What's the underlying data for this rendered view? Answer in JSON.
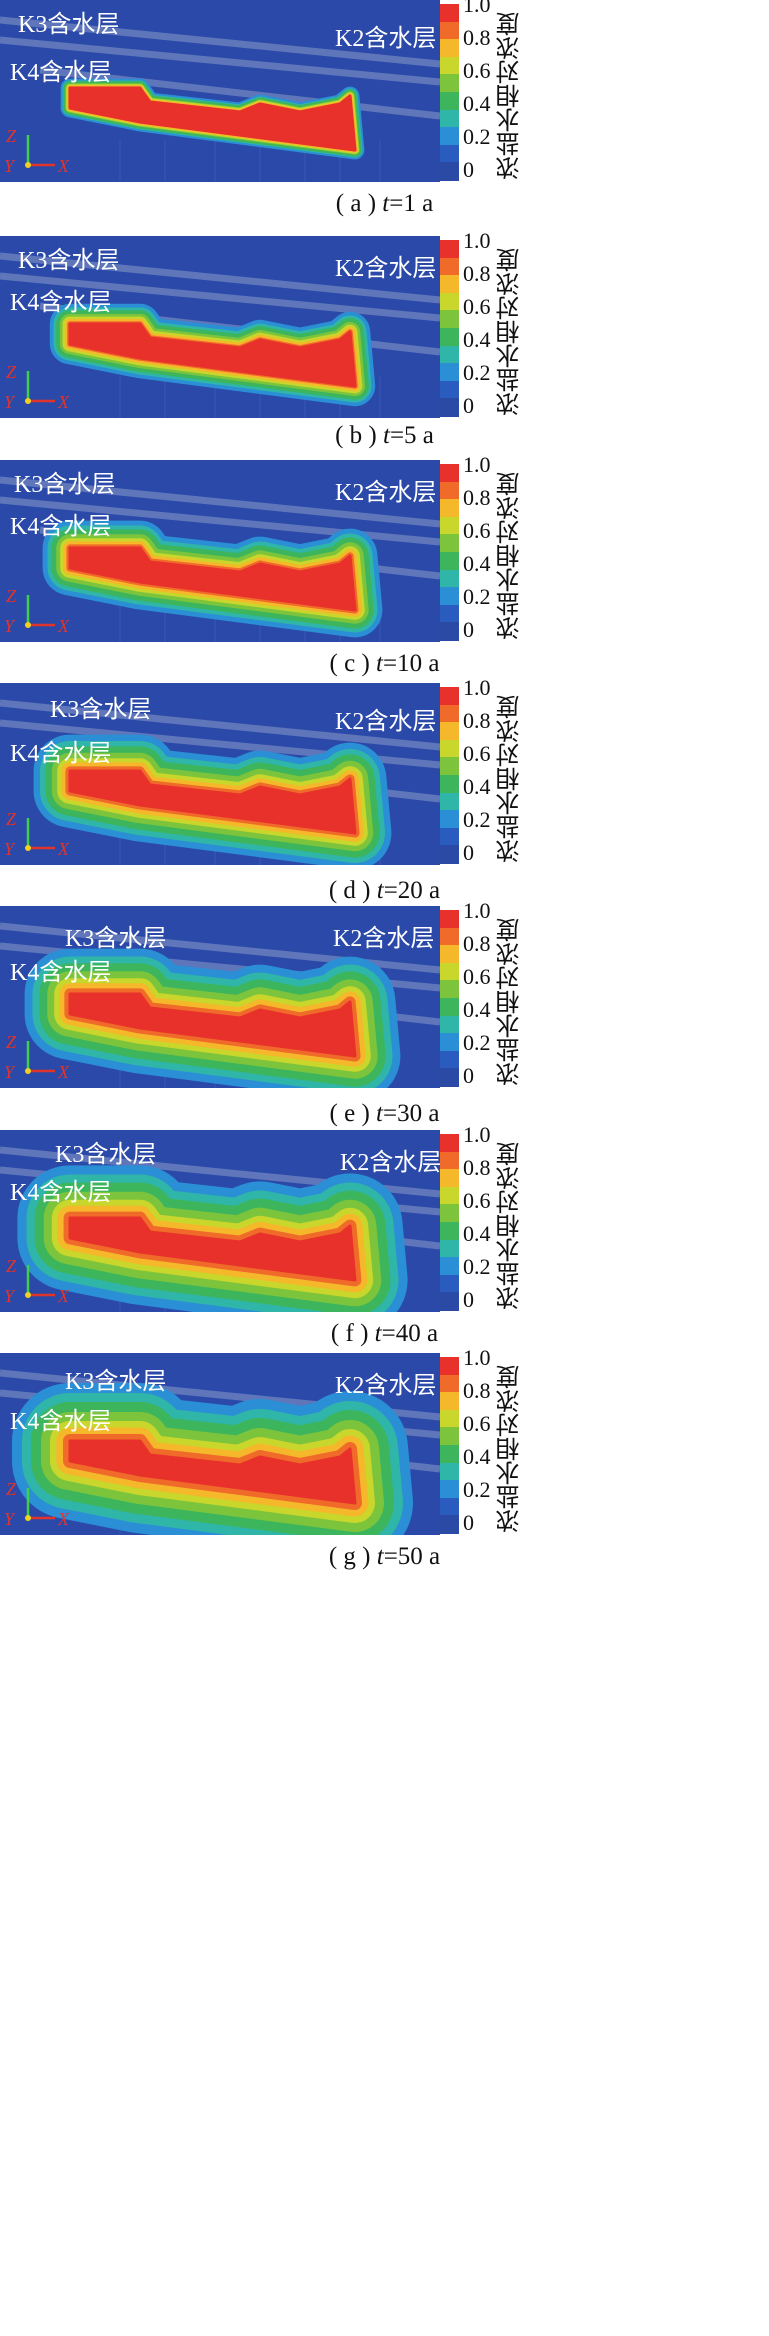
{
  "legend": {
    "label": "浓盐水相对浓度",
    "ticks": [
      "1.0",
      "0.8",
      "0.6",
      "0.4",
      "0.2",
      "0"
    ],
    "colors": [
      "#e8312a",
      "#f06a2a",
      "#f5b82a",
      "#c9d62c",
      "#7cc43c",
      "#3cb55c",
      "#2fb6a8",
      "#2a8fd4",
      "#2a5cc0",
      "#2b4aa6"
    ]
  },
  "axes": {
    "z": "Z",
    "y": "Y",
    "x": "X"
  },
  "aquifers": {
    "k3": "K3含水层",
    "k4": "K4含水层",
    "k2": "K2含水层"
  },
  "panels": [
    {
      "prefix": "( a ) ",
      "t": "t",
      "suffix": "=1 a",
      "spread": 0.3
    },
    {
      "prefix": "( b ) ",
      "t": "t",
      "suffix": "=5 a",
      "spread": 0.9
    },
    {
      "prefix": "( c ) ",
      "t": "t",
      "suffix": "=10 a",
      "spread": 1.3
    },
    {
      "prefix": "( d ) ",
      "t": "t",
      "suffix": "=20 a",
      "spread": 1.8
    },
    {
      "prefix": "( e ) ",
      "t": "t",
      "suffix": "=30 a",
      "spread": 2.3
    },
    {
      "prefix": "( f ) ",
      "t": "t",
      "suffix": "=40 a",
      "spread": 2.7
    },
    {
      "prefix": "( g ) ",
      "t": "t",
      "suffix": "=50 a",
      "spread": 3.0
    }
  ]
}
